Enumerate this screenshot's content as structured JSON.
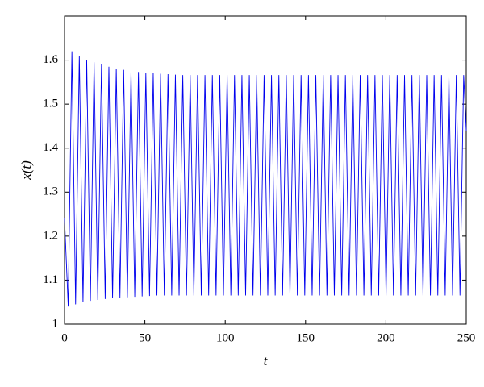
{
  "chart_data": {
    "type": "line",
    "xlabel": "t",
    "ylabel": "x(t)",
    "x": [
      0,
      2.3,
      4.6,
      6.9,
      9.2,
      11.5,
      13.8,
      16.1,
      18.4,
      20.7,
      23,
      25.3,
      27.6,
      29.9,
      32.2,
      34.5,
      36.8,
      39.1,
      41.4,
      43.7,
      46,
      48.3,
      50.6,
      52.9,
      55.2,
      57.5,
      59.8,
      62.1,
      64.4,
      66.7,
      69,
      71.3,
      73.6,
      75.9,
      78.2,
      80.5,
      82.8,
      85.1,
      87.4,
      89.7,
      92,
      94.3,
      96.6,
      98.9,
      101.2,
      103.5,
      105.8,
      108.1,
      110.4,
      112.7,
      115,
      117.3,
      119.6,
      121.9,
      124.2,
      126.5,
      128.8,
      131.1,
      133.4,
      135.7,
      138,
      140.3,
      142.6,
      144.9,
      147.2,
      149.5,
      151.8,
      154.1,
      156.4,
      158.7,
      161,
      163.3,
      165.6,
      167.9,
      170.2,
      172.5,
      174.8,
      177.1,
      179.4,
      181.7,
      184,
      186.3,
      188.6,
      190.9,
      193.2,
      195.5,
      197.8,
      200.1,
      202.4,
      204.7,
      207,
      209.3,
      211.6,
      213.9,
      216.2,
      218.5,
      220.8,
      223.1,
      225.4,
      227.7,
      230,
      232.3,
      234.6,
      236.9,
      239.2,
      241.5,
      243.8,
      246.1,
      248.4,
      250
    ],
    "series": [
      {
        "color": "#0000ee",
        "values": [
          1.24,
          1.04,
          1.62,
          1.045,
          1.61,
          1.05,
          1.6,
          1.053,
          1.595,
          1.055,
          1.59,
          1.057,
          1.585,
          1.059,
          1.58,
          1.06,
          1.578,
          1.061,
          1.575,
          1.062,
          1.573,
          1.063,
          1.571,
          1.064,
          1.57,
          1.065,
          1.569,
          1.065,
          1.568,
          1.065,
          1.567,
          1.065,
          1.566,
          1.065,
          1.566,
          1.065,
          1.566,
          1.065,
          1.566,
          1.065,
          1.566,
          1.065,
          1.566,
          1.065,
          1.566,
          1.065,
          1.566,
          1.065,
          1.566,
          1.065,
          1.566,
          1.065,
          1.566,
          1.065,
          1.566,
          1.065,
          1.566,
          1.065,
          1.566,
          1.065,
          1.566,
          1.065,
          1.566,
          1.065,
          1.566,
          1.065,
          1.566,
          1.065,
          1.566,
          1.065,
          1.566,
          1.065,
          1.566,
          1.065,
          1.566,
          1.065,
          1.566,
          1.065,
          1.566,
          1.065,
          1.566,
          1.065,
          1.566,
          1.065,
          1.566,
          1.065,
          1.566,
          1.065,
          1.566,
          1.065,
          1.566,
          1.065,
          1.566,
          1.065,
          1.566,
          1.065,
          1.566,
          1.065,
          1.566,
          1.065,
          1.566,
          1.065,
          1.566,
          1.065,
          1.566,
          1.065,
          1.566,
          1.065,
          1.566,
          1.44
        ]
      }
    ],
    "xlim": [
      0,
      250
    ],
    "xticks": [
      0,
      50,
      100,
      150,
      200,
      250
    ],
    "ylim": [
      1,
      1.7
    ],
    "yticks": [
      1,
      1.1,
      1.2,
      1.3,
      1.4,
      1.5,
      1.6
    ],
    "grid": false
  }
}
